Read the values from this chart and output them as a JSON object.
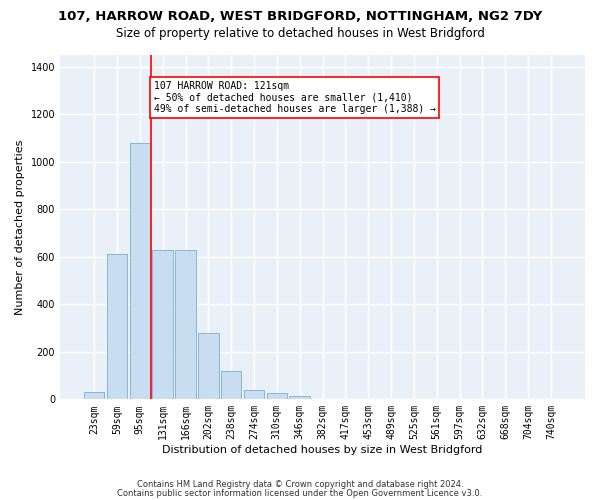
{
  "title1": "107, HARROW ROAD, WEST BRIDGFORD, NOTTINGHAM, NG2 7DY",
  "title2": "Size of property relative to detached houses in West Bridgford",
  "xlabel": "Distribution of detached houses by size in West Bridgford",
  "ylabel": "Number of detached properties",
  "footnote1": "Contains HM Land Registry data © Crown copyright and database right 2024.",
  "footnote2": "Contains public sector information licensed under the Open Government Licence v3.0.",
  "bin_labels": [
    "23sqm",
    "59sqm",
    "95sqm",
    "131sqm",
    "166sqm",
    "202sqm",
    "238sqm",
    "274sqm",
    "310sqm",
    "346sqm",
    "382sqm",
    "417sqm",
    "453sqm",
    "489sqm",
    "525sqm",
    "561sqm",
    "597sqm",
    "632sqm",
    "668sqm",
    "704sqm",
    "740sqm"
  ],
  "bar_heights": [
    30,
    610,
    1080,
    630,
    630,
    280,
    120,
    40,
    25,
    15,
    0,
    0,
    0,
    0,
    0,
    0,
    0,
    0,
    0,
    0,
    0
  ],
  "bar_color": "#c8ddf0",
  "bar_edge_color": "#7aafd4",
  "vline_color": "red",
  "annotation_line1": "107 HARROW ROAD: 121sqm",
  "annotation_line2": "← 50% of detached houses are smaller (1,410)",
  "annotation_line3": "49% of semi-detached houses are larger (1,388) →",
  "annotation_box_color": "white",
  "annotation_box_edge": "red",
  "ylim": [
    0,
    1450
  ],
  "yticks": [
    0,
    200,
    400,
    600,
    800,
    1000,
    1200,
    1400
  ],
  "background_color": "#eaf0f8",
  "grid_color": "white",
  "title1_fontsize": 9.5,
  "title2_fontsize": 8.5,
  "xlabel_fontsize": 8,
  "ylabel_fontsize": 8,
  "tick_fontsize": 7,
  "annotation_fontsize": 7,
  "footnote_fontsize": 6
}
